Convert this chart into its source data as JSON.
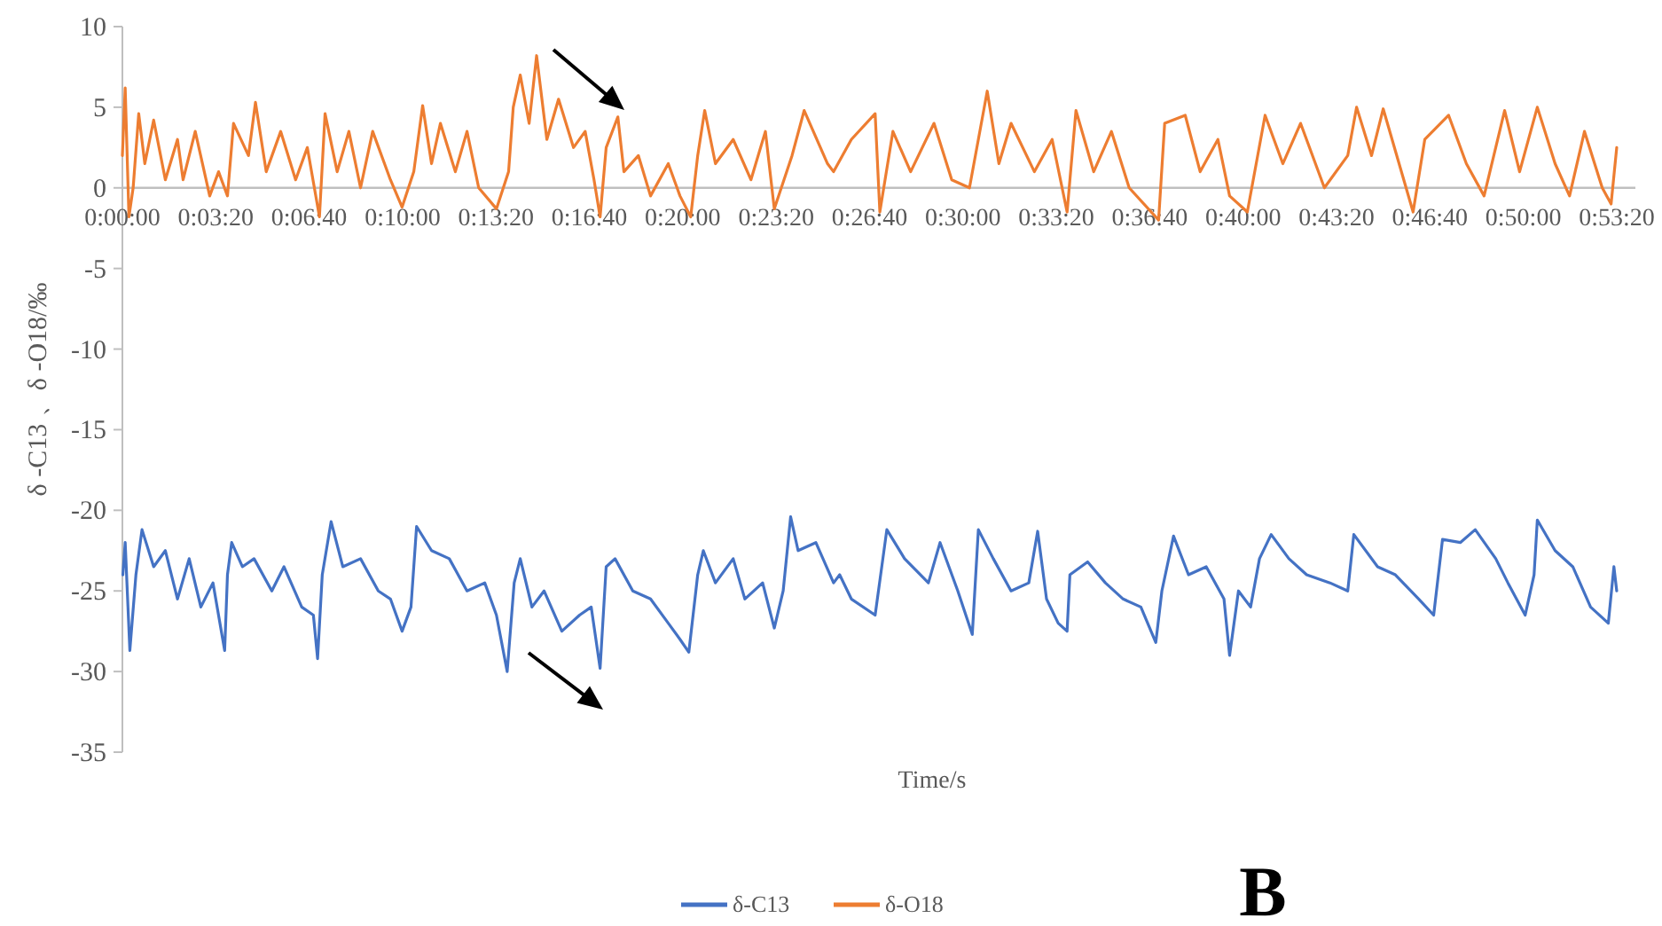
{
  "chart_data": {
    "type": "line",
    "xlabel": "Time/s",
    "ylabel": "δ -C13 、δ -O18/‰",
    "xlim": [
      0,
      3240
    ],
    "ylim": [
      -35,
      10
    ],
    "xticks": [
      {
        "value": 0,
        "label": "0:00:00"
      },
      {
        "value": 200,
        "label": "0:03:20"
      },
      {
        "value": 400,
        "label": "0:06:40"
      },
      {
        "value": 600,
        "label": "0:10:00"
      },
      {
        "value": 800,
        "label": "0:13:20"
      },
      {
        "value": 1000,
        "label": "0:16:40"
      },
      {
        "value": 1200,
        "label": "0:20:00"
      },
      {
        "value": 1400,
        "label": "0:23:20"
      },
      {
        "value": 1600,
        "label": "0:26:40"
      },
      {
        "value": 1800,
        "label": "0:30:00"
      },
      {
        "value": 2000,
        "label": "0:33:20"
      },
      {
        "value": 2200,
        "label": "0:36:40"
      },
      {
        "value": 2400,
        "label": "0:40:00"
      },
      {
        "value": 2600,
        "label": "0:43:20"
      },
      {
        "value": 2800,
        "label": "0:46:40"
      },
      {
        "value": 3000,
        "label": "0:50:00"
      },
      {
        "value": 3200,
        "label": "0:53:20"
      }
    ],
    "yticks": [
      -35,
      -30,
      -25,
      -20,
      -15,
      -10,
      -5,
      0,
      5,
      10
    ],
    "legend": "bottom",
    "line_style": "solid",
    "annotations": [
      "B"
    ],
    "series": [
      {
        "name": "δ-C13",
        "color": "#4472c4",
        "x": [
          1,
          6,
          16,
          29,
          42,
          67,
          92,
          118,
          143,
          168,
          194,
          219,
          225,
          234,
          257,
          282,
          320,
          346,
          384,
          409,
          418,
          428,
          447,
          472,
          510,
          548,
          574,
          599,
          618,
          630,
          662,
          700,
          738,
          776,
          801,
          824,
          839,
          852,
          877,
          903,
          941,
          979,
          1004,
          1023,
          1036,
          1055,
          1093,
          1131,
          1169,
          1194,
          1213,
          1232,
          1244,
          1270,
          1308,
          1333,
          1371,
          1396,
          1415,
          1431,
          1447,
          1485,
          1523,
          1536,
          1561,
          1612,
          1637,
          1675,
          1726,
          1751,
          1789,
          1820,
          1833,
          1865,
          1903,
          1941,
          1960,
          1979,
          2004,
          2023,
          2029,
          2067,
          2105,
          2143,
          2181,
          2213,
          2226,
          2251,
          2283,
          2321,
          2359,
          2371,
          2390,
          2416,
          2435,
          2460,
          2498,
          2536,
          2586,
          2624,
          2637,
          2688,
          2726,
          2776,
          2808,
          2827,
          2865,
          2897,
          2941,
          2967,
          3004,
          3023,
          3030,
          3068,
          3106,
          3144,
          3182,
          3194,
          3200
        ],
        "values": [
          -24,
          -22,
          -28.7,
          -24,
          -21.2,
          -23.5,
          -22.5,
          -25.5,
          -23,
          -26,
          -24.5,
          -28.7,
          -24,
          -22,
          -23.5,
          -23,
          -25,
          -23.5,
          -26,
          -26.5,
          -29.2,
          -24,
          -20.7,
          -23.5,
          -23,
          -25,
          -25.5,
          -27.5,
          -26,
          -21,
          -22.5,
          -23,
          -25,
          -24.5,
          -26.5,
          -30,
          -24.5,
          -23,
          -26,
          -25,
          -27.5,
          -26.5,
          -26,
          -29.8,
          -23.5,
          -23,
          -25,
          -25.5,
          -27,
          -28,
          -28.8,
          -24,
          -22.5,
          -24.5,
          -23,
          -25.5,
          -24.5,
          -27.3,
          -25,
          -20.4,
          -22.5,
          -22,
          -24.5,
          -24,
          -25.5,
          -26.5,
          -21.2,
          -23,
          -24.5,
          -22,
          -25,
          -27.7,
          -21.2,
          -23,
          -25,
          -24.5,
          -21.3,
          -25.5,
          -27,
          -27.5,
          -24,
          -23.2,
          -24.5,
          -25.5,
          -26,
          -28.2,
          -25,
          -21.6,
          -24,
          -23.5,
          -25.5,
          -29,
          -25,
          -26,
          -23,
          -21.5,
          -23,
          -24,
          -24.5,
          -25,
          -21.5,
          -23.5,
          -24,
          -25.5,
          -26.5,
          -21.8,
          -22,
          -21.2,
          -23,
          -24.5,
          -26.5,
          -24,
          -20.6,
          -22.5,
          -23.5,
          -26,
          -27,
          -23.5,
          -25
        ]
      },
      {
        "name": "δ-O18",
        "color": "#ed7d31",
        "x": [
          0,
          6,
          14,
          23,
          35,
          48,
          67,
          92,
          118,
          130,
          156,
          187,
          206,
          225,
          238,
          270,
          285,
          308,
          339,
          371,
          396,
          422,
          434,
          460,
          485,
          510,
          536,
          574,
          599,
          624,
          643,
          662,
          681,
          713,
          738,
          763,
          801,
          827,
          837,
          852,
          871,
          887,
          909,
          934,
          966,
          991,
          1010,
          1023,
          1036,
          1061,
          1074,
          1105,
          1131,
          1169,
          1194,
          1217,
          1232,
          1247,
          1270,
          1308,
          1346,
          1377,
          1396,
          1434,
          1460,
          1510,
          1523,
          1561,
          1612,
          1622,
          1650,
          1688,
          1738,
          1776,
          1814,
          1852,
          1877,
          1903,
          1953,
          1991,
          2023,
          2042,
          2080,
          2118,
          2156,
          2219,
          2232,
          2276,
          2308,
          2346,
          2371,
          2409,
          2447,
          2485,
          2523,
          2574,
          2624,
          2643,
          2675,
          2700,
          2764,
          2789,
          2840,
          2878,
          2916,
          2960,
          2992,
          3030,
          3068,
          3099,
          3131,
          3169,
          3188,
          3200
        ],
        "values": [
          2,
          6.2,
          -1.8,
          0,
          4.6,
          1.5,
          4.2,
          0.5,
          3,
          0.5,
          3.5,
          -0.5,
          1,
          -0.5,
          4,
          2,
          5.3,
          1,
          3.5,
          0.5,
          2.5,
          -1.8,
          4.6,
          1,
          3.5,
          0,
          3.5,
          0.5,
          -1.2,
          1,
          5.1,
          1.5,
          4,
          1,
          3.5,
          0,
          -1.3,
          1,
          5,
          7,
          4,
          8.2,
          3,
          5.5,
          2.5,
          3.5,
          0.5,
          -1.8,
          2.5,
          4.4,
          1,
          2,
          -0.5,
          1.5,
          -0.5,
          -1.8,
          2,
          4.8,
          1.5,
          3,
          0.5,
          3.5,
          -1.3,
          2,
          4.8,
          1.5,
          1,
          3,
          4.6,
          -1.5,
          3.5,
          1,
          4,
          0.5,
          0,
          6,
          1.5,
          4,
          1,
          3,
          -1.5,
          4.8,
          1,
          3.5,
          0,
          -2,
          4,
          4.5,
          1,
          3,
          -0.5,
          -1.5,
          4.5,
          1.5,
          4,
          0,
          2,
          5,
          2,
          4.9,
          -1.5,
          3,
          4.5,
          1.5,
          -0.5,
          4.8,
          1,
          5,
          1.5,
          -0.5,
          3.5,
          0,
          -1,
          2.5
        ]
      }
    ]
  }
}
